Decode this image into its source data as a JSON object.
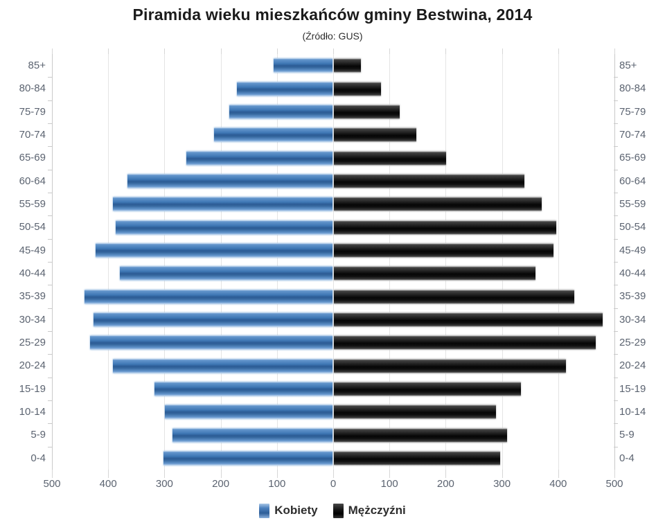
{
  "header": {
    "title": "Piramida wieku mieszkańców gminy Bestwina, 2014",
    "subtitle": "(Źródło: GUS)"
  },
  "legend": {
    "female_label": "Kobiety",
    "male_label": "Mężczyźni"
  },
  "chart_data": {
    "type": "bar",
    "variant": "population-pyramid",
    "title": "Piramida wieku mieszkańców gminy Bestwina, 2014",
    "subtitle": "(Źródło: GUS)",
    "categories": [
      "85+",
      "80-84",
      "75-79",
      "70-74",
      "65-69",
      "60-64",
      "55-59",
      "50-54",
      "45-49",
      "40-44",
      "35-39",
      "30-34",
      "25-29",
      "20-24",
      "15-19",
      "10-14",
      "5-9",
      "0-4"
    ],
    "series": [
      {
        "name": "Kobiety",
        "side": "left",
        "color": "#4b84c4",
        "values": [
          105,
          170,
          183,
          210,
          260,
          365,
          390,
          386,
          421,
          378,
          441,
          425,
          431,
          391,
          316,
          298,
          284,
          300
        ]
      },
      {
        "name": "Mężczyźni",
        "side": "right",
        "color": "#1c1c1c",
        "values": [
          48,
          84,
          117,
          146,
          199,
          339,
          370,
          395,
          390,
          358,
          427,
          478,
          465,
          413,
          333,
          288,
          308,
          295
        ]
      }
    ],
    "x_axis": {
      "max_each_side": 500,
      "tick_step": 100,
      "tick_labels": [
        "500",
        "400",
        "300",
        "200",
        "100",
        "0",
        "100",
        "200",
        "300",
        "400",
        "500"
      ]
    },
    "grid": "on",
    "legend_position": "bottom",
    "colors": {
      "female_bar": "#4b84c4",
      "male_bar": "#1c1c1c",
      "gridline": "#e4e4e4",
      "axis_text": "#5b6370",
      "title_text": "#1b1b1b"
    }
  }
}
